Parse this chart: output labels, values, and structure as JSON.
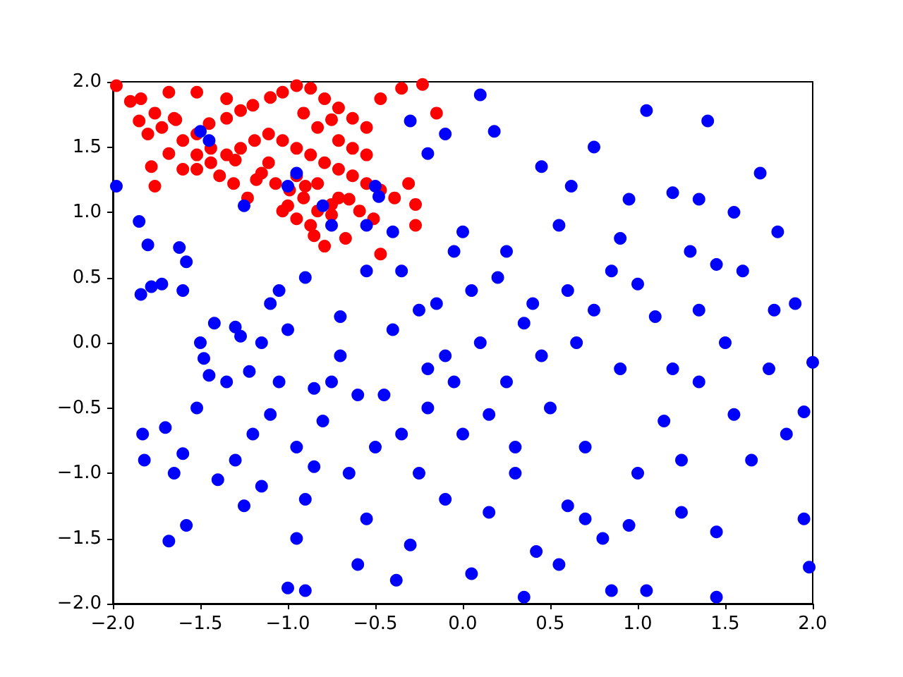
{
  "chart_data": {
    "type": "scatter",
    "marker": "circle",
    "xlim": [
      -2,
      2
    ],
    "ylim": [
      -2,
      2
    ],
    "xticks": [
      {
        "value": -2,
        "label": "−2.0"
      },
      {
        "value": -1.5,
        "label": "−1.5"
      },
      {
        "value": -1,
        "label": "−1.0"
      },
      {
        "value": -0.5,
        "label": "−0.5"
      },
      {
        "value": 0,
        "label": "0.0"
      },
      {
        "value": 0.5,
        "label": "0.5"
      },
      {
        "value": 1,
        "label": "1.0"
      },
      {
        "value": 1.5,
        "label": "1.5"
      },
      {
        "value": 2,
        "label": "2.0"
      }
    ],
    "yticks": [
      {
        "value": -2,
        "label": "−2.0"
      },
      {
        "value": -1.5,
        "label": "−1.5"
      },
      {
        "value": -1,
        "label": "−1.0"
      },
      {
        "value": -0.5,
        "label": "−0.5"
      },
      {
        "value": 0,
        "label": "0.0"
      },
      {
        "value": 0.5,
        "label": "0.5"
      },
      {
        "value": 1,
        "label": "1.0"
      },
      {
        "value": 1.5,
        "label": "1.5"
      },
      {
        "value": 2,
        "label": "2.0"
      }
    ],
    "series": [
      {
        "color": "#ff0000",
        "x": [
          -1.98,
          -1.9,
          -1.85,
          -1.8,
          -1.72,
          -1.65,
          -1.78,
          -1.68,
          -1.6,
          -1.52,
          -1.45,
          -1.35,
          -1.27,
          -1.2,
          -1.1,
          -1.03,
          -0.95,
          -0.87,
          -0.79,
          -0.71,
          -0.63,
          -0.55,
          -0.47,
          -0.35,
          -0.23,
          -1.52,
          -1.44,
          -1.35,
          -1.27,
          -1.19,
          -1.11,
          -1.03,
          -0.95,
          -0.87,
          -0.79,
          -0.71,
          -0.63,
          -0.55,
          -0.47,
          -0.39,
          -0.27,
          -0.27,
          -1.15,
          -1.07,
          -0.99,
          -0.91,
          -0.83,
          -0.75,
          -0.67,
          -1.03,
          -0.95,
          -0.87,
          -0.75,
          -0.59,
          -0.51,
          -0.47,
          -0.79,
          -0.71,
          -1.23,
          -1.31,
          -1.39,
          -1.76,
          -1.6,
          -1.52,
          -1.44,
          -1.11,
          -0.95,
          -0.83,
          -0.63,
          -0.71,
          -0.55,
          -0.15,
          -0.31,
          -0.91,
          -0.83,
          -0.75,
          -1.35,
          -1.52,
          -1.68,
          -1.84,
          -1.76,
          -1.64,
          -1.0,
          -0.9,
          -1.3,
          -1.18,
          -0.65,
          -0.85
        ],
        "values": [
          1.97,
          1.85,
          1.7,
          1.6,
          1.65,
          1.72,
          1.35,
          1.45,
          1.55,
          1.6,
          1.68,
          1.72,
          1.78,
          1.82,
          1.88,
          1.92,
          1.97,
          1.95,
          1.87,
          1.8,
          1.72,
          1.65,
          1.87,
          1.95,
          1.98,
          1.33,
          1.38,
          1.44,
          1.49,
          1.55,
          1.6,
          1.55,
          1.49,
          1.44,
          1.38,
          1.33,
          1.28,
          1.22,
          1.17,
          1.11,
          1.06,
          0.9,
          1.3,
          1.22,
          1.17,
          1.11,
          1.01,
          0.98,
          0.8,
          1.01,
          0.95,
          0.9,
          1.06,
          1.01,
          0.95,
          0.68,
          0.74,
          1.11,
          1.11,
          1.22,
          1.28,
          1.2,
          1.33,
          1.44,
          1.49,
          1.38,
          1.28,
          1.22,
          1.49,
          1.55,
          1.44,
          1.76,
          1.22,
          1.76,
          1.65,
          1.71,
          1.87,
          1.92,
          1.92,
          1.87,
          1.76,
          1.71,
          1.05,
          1.2,
          1.4,
          1.25,
          1.1,
          0.82
        ]
      },
      {
        "color": "#0000ff",
        "x": [
          -1.98,
          -1.85,
          -1.8,
          -1.78,
          -1.84,
          -1.72,
          -1.62,
          -1.58,
          -1.6,
          -1.48,
          -1.5,
          -1.45,
          -1.42,
          -1.35,
          -1.3,
          -1.27,
          -1.22,
          -1.15,
          -1.1,
          -1.05,
          -1.83,
          -1.82,
          -1.7,
          -1.65,
          -1.6,
          -1.58,
          -1.68,
          -1.52,
          -1.4,
          -1.3,
          -1.25,
          -1.2,
          -1.15,
          -1.1,
          -1.0,
          -0.9,
          -0.95,
          -0.9,
          -0.85,
          -0.8,
          -0.75,
          -0.7,
          -0.65,
          -0.6,
          -0.55,
          -0.5,
          -0.45,
          -0.4,
          -0.38,
          -0.3,
          -0.25,
          -0.2,
          -0.15,
          -0.1,
          -0.05,
          0.0,
          0.05,
          0.1,
          0.15,
          0.2,
          0.25,
          0.3,
          0.35,
          0.4,
          0.42,
          0.45,
          0.5,
          0.55,
          0.6,
          0.62,
          0.65,
          0.7,
          0.75,
          0.8,
          0.85,
          0.9,
          0.95,
          1.0,
          1.05,
          1.1,
          1.15,
          1.2,
          1.25,
          1.3,
          1.35,
          1.4,
          1.45,
          1.5,
          1.55,
          1.6,
          1.65,
          1.7,
          1.75,
          1.8,
          1.85,
          1.9,
          1.95,
          1.98,
          2.0,
          1.95,
          1.78,
          1.55,
          1.45,
          1.35,
          1.25,
          1.05,
          0.85,
          0.55,
          0.1,
          0.18,
          0.0,
          -0.1,
          -0.2,
          -0.3,
          -0.5,
          -0.55,
          -0.35,
          -0.25,
          -0.1,
          0.05,
          0.25,
          0.35,
          0.45,
          0.6,
          0.75,
          0.9,
          1.0,
          1.2,
          1.35,
          1.45,
          0.95,
          0.7,
          0.3,
          0.15,
          -0.05,
          -0.2,
          -0.35,
          -0.6,
          -0.7,
          -0.85,
          -0.95,
          -1.05,
          -1.0,
          -0.9,
          -0.8,
          -0.95,
          -1.25,
          -1.5,
          -1.45,
          -1.0,
          -0.48,
          -0.4,
          -0.55,
          -0.75
        ],
        "values": [
          1.2,
          0.93,
          0.75,
          0.43,
          0.37,
          0.45,
          0.73,
          0.62,
          0.4,
          -0.12,
          0.0,
          -0.25,
          0.15,
          -0.3,
          0.12,
          0.05,
          -0.22,
          0.0,
          0.3,
          0.4,
          -0.7,
          -0.9,
          -0.65,
          -1.0,
          -0.85,
          -1.4,
          -1.52,
          -0.5,
          -1.05,
          -0.9,
          -1.25,
          -0.7,
          -1.1,
          -0.55,
          -1.88,
          -1.9,
          -1.5,
          -1.2,
          -0.95,
          -0.6,
          -0.3,
          0.2,
          -1.0,
          -1.7,
          -1.35,
          -0.8,
          -0.4,
          0.1,
          -1.82,
          -1.55,
          -1.0,
          -0.5,
          0.3,
          -1.2,
          0.7,
          -0.7,
          -1.77,
          0.0,
          -1.3,
          0.5,
          -0.3,
          -1.0,
          -1.95,
          0.3,
          -1.6,
          1.35,
          -0.5,
          0.9,
          -1.25,
          1.2,
          0.0,
          -0.8,
          1.5,
          -1.5,
          0.55,
          -0.2,
          1.1,
          -1.0,
          1.78,
          0.2,
          -0.6,
          1.15,
          -1.3,
          0.7,
          -0.3,
          1.7,
          -1.95,
          0.0,
          -0.55,
          0.55,
          -0.9,
          1.3,
          -0.2,
          0.85,
          -0.7,
          0.3,
          -1.35,
          -1.72,
          -0.15,
          -0.53,
          0.25,
          1.0,
          0.6,
          1.1,
          -0.9,
          -1.9,
          -1.9,
          -1.7,
          1.9,
          1.62,
          0.85,
          1.6,
          1.45,
          1.7,
          1.2,
          0.55,
          0.55,
          0.25,
          -0.1,
          0.4,
          0.7,
          0.15,
          -0.1,
          0.4,
          0.25,
          0.8,
          0.45,
          -0.2,
          0.25,
          -1.45,
          -1.4,
          -1.35,
          -0.8,
          -0.55,
          -0.3,
          -0.2,
          -0.7,
          -0.4,
          -0.1,
          -0.35,
          -0.8,
          -0.3,
          0.1,
          0.5,
          1.05,
          1.3,
          1.05,
          1.62,
          1.55,
          1.2,
          1.12,
          0.85,
          0.9,
          0.9
        ]
      }
    ]
  }
}
